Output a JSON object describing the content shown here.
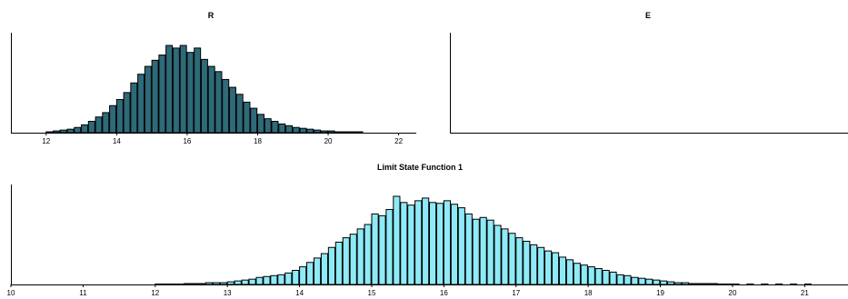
{
  "chart_data": [
    {
      "type": "bar",
      "title": "R",
      "xlim": [
        11,
        22.5
      ],
      "xticks": [
        12,
        14,
        16,
        18,
        20,
        22
      ],
      "color": "#2e6a78",
      "bin_width": 0.18,
      "bins": [
        [
          12.0,
          1
        ],
        [
          12.2,
          2
        ],
        [
          12.4,
          3
        ],
        [
          12.6,
          4
        ],
        [
          12.8,
          6
        ],
        [
          13.0,
          9
        ],
        [
          13.2,
          13
        ],
        [
          13.4,
          18
        ],
        [
          13.6,
          23
        ],
        [
          13.8,
          31
        ],
        [
          14.0,
          38
        ],
        [
          14.2,
          46
        ],
        [
          14.4,
          57
        ],
        [
          14.6,
          67
        ],
        [
          14.8,
          76
        ],
        [
          15.0,
          83
        ],
        [
          15.2,
          89
        ],
        [
          15.4,
          100
        ],
        [
          15.6,
          97
        ],
        [
          15.8,
          100
        ],
        [
          16.0,
          92
        ],
        [
          16.2,
          97
        ],
        [
          16.4,
          84
        ],
        [
          16.6,
          76
        ],
        [
          16.8,
          70
        ],
        [
          17.0,
          61
        ],
        [
          17.2,
          52
        ],
        [
          17.4,
          44
        ],
        [
          17.6,
          35
        ],
        [
          17.8,
          28
        ],
        [
          18.0,
          21
        ],
        [
          18.2,
          16
        ],
        [
          18.4,
          13
        ],
        [
          18.6,
          10
        ],
        [
          18.8,
          8
        ],
        [
          19.0,
          6
        ],
        [
          19.2,
          5
        ],
        [
          19.4,
          4
        ],
        [
          19.6,
          3
        ],
        [
          19.8,
          2
        ],
        [
          20.0,
          2
        ],
        [
          20.2,
          1
        ],
        [
          20.4,
          1
        ],
        [
          20.6,
          1
        ],
        [
          20.8,
          1
        ]
      ]
    },
    {
      "type": "bar",
      "title": "E",
      "xlim": [
        0,
        1
      ],
      "xticks": [],
      "color": "#2e6a78",
      "bins": []
    },
    {
      "type": "bar",
      "title": "Limit State Function 1",
      "xlim": [
        10,
        21.6
      ],
      "xticks": [
        10,
        11,
        12,
        13,
        14,
        15,
        16,
        17,
        18,
        19,
        20,
        21
      ],
      "color": "#8eeaf6",
      "bin_width": 0.09,
      "bins": [
        [
          12.0,
          0.5
        ],
        [
          12.1,
          0.5
        ],
        [
          12.2,
          0.5
        ],
        [
          12.3,
          0.5
        ],
        [
          12.4,
          1
        ],
        [
          12.5,
          1
        ],
        [
          12.6,
          1
        ],
        [
          12.7,
          2
        ],
        [
          12.8,
          2
        ],
        [
          12.9,
          2
        ],
        [
          13.0,
          3
        ],
        [
          13.1,
          4
        ],
        [
          13.2,
          5
        ],
        [
          13.3,
          6
        ],
        [
          13.4,
          8
        ],
        [
          13.5,
          9
        ],
        [
          13.6,
          10
        ],
        [
          13.7,
          11
        ],
        [
          13.8,
          13
        ],
        [
          13.9,
          16
        ],
        [
          14.0,
          20
        ],
        [
          14.1,
          25
        ],
        [
          14.2,
          30
        ],
        [
          14.3,
          35
        ],
        [
          14.4,
          42
        ],
        [
          14.5,
          48
        ],
        [
          14.6,
          53
        ],
        [
          14.7,
          57
        ],
        [
          14.8,
          63
        ],
        [
          14.9,
          68
        ],
        [
          15.0,
          80
        ],
        [
          15.1,
          78
        ],
        [
          15.2,
          85
        ],
        [
          15.3,
          100
        ],
        [
          15.4,
          93
        ],
        [
          15.5,
          90
        ],
        [
          15.6,
          95
        ],
        [
          15.7,
          98
        ],
        [
          15.8,
          93
        ],
        [
          15.9,
          92
        ],
        [
          16.0,
          95
        ],
        [
          16.1,
          91
        ],
        [
          16.2,
          87
        ],
        [
          16.3,
          80
        ],
        [
          16.4,
          74
        ],
        [
          16.5,
          76
        ],
        [
          16.6,
          73
        ],
        [
          16.7,
          67
        ],
        [
          16.8,
          63
        ],
        [
          16.9,
          58
        ],
        [
          17.0,
          53
        ],
        [
          17.1,
          49
        ],
        [
          17.2,
          45
        ],
        [
          17.3,
          42
        ],
        [
          17.4,
          38
        ],
        [
          17.5,
          36
        ],
        [
          17.6,
          31
        ],
        [
          17.7,
          28
        ],
        [
          17.8,
          24
        ],
        [
          17.9,
          22
        ],
        [
          18.0,
          20
        ],
        [
          18.1,
          18
        ],
        [
          18.2,
          16
        ],
        [
          18.3,
          14
        ],
        [
          18.4,
          11
        ],
        [
          18.5,
          10
        ],
        [
          18.6,
          8
        ],
        [
          18.7,
          7
        ],
        [
          18.8,
          6
        ],
        [
          18.9,
          5
        ],
        [
          19.0,
          4
        ],
        [
          19.1,
          3
        ],
        [
          19.2,
          2
        ],
        [
          19.3,
          2
        ],
        [
          19.4,
          1
        ],
        [
          19.5,
          1
        ],
        [
          19.6,
          1
        ],
        [
          19.7,
          1
        ],
        [
          19.8,
          0.5
        ],
        [
          19.9,
          0.5
        ],
        [
          20.0,
          0.5
        ],
        [
          20.2,
          0.5
        ],
        [
          20.4,
          0.5
        ],
        [
          20.6,
          0.5
        ],
        [
          20.8,
          0.5
        ],
        [
          21.0,
          0.5
        ]
      ]
    }
  ]
}
